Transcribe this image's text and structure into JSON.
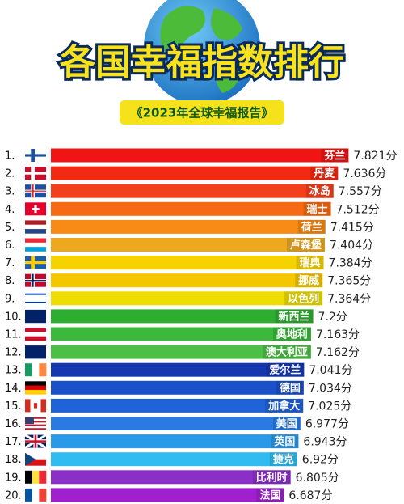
{
  "chart_data": {
    "type": "bar",
    "orientation": "horizontal",
    "title": "各国幸福指数排行",
    "subtitle": "《2023年全球幸福报告》",
    "ranks": [
      "1.",
      "2.",
      "3.",
      "4.",
      "5.",
      "6.",
      "7.",
      "8.",
      "9.",
      "10.",
      "11.",
      "12.",
      "13.",
      "14.",
      "15.",
      "16.",
      "17.",
      "18.",
      "19.",
      "20."
    ],
    "categories": [
      "芬兰",
      "丹麦",
      "冰岛",
      "瑞士",
      "荷兰",
      "卢森堡",
      "瑞典",
      "挪威",
      "以色列",
      "新西兰",
      "奥地利",
      "澳大利亚",
      "爱尔兰",
      "德国",
      "加拿大",
      "美国",
      "英国",
      "捷克",
      "比利时",
      "法国"
    ],
    "values": [
      7.821,
      7.636,
      7.557,
      7.512,
      7.415,
      7.404,
      7.384,
      7.365,
      7.364,
      7.2,
      7.163,
      7.162,
      7.041,
      7.034,
      7.025,
      6.977,
      6.943,
      6.92,
      6.805,
      6.687
    ],
    "value_labels": [
      "7.821分",
      "7.636分",
      "7.557分",
      "7.512分",
      "7.415分",
      "7.404分",
      "7.384分",
      "7.365分",
      "7.364分",
      "7.2分",
      "7.163分",
      "7.162分",
      "7.041分",
      "7.034分",
      "7.025分",
      "6.977分",
      "6.943分",
      "6.92分",
      "6.805分",
      "6.687分"
    ],
    "colors": [
      "#f01414",
      "#f22a14",
      "#f3401c",
      "#f56a12",
      "#f88a16",
      "#eda820",
      "#f5d200",
      "#f3c600",
      "#efdc00",
      "#2eae30",
      "#3cb83c",
      "#4cc046",
      "#1538b0",
      "#1a50c8",
      "#2062d8",
      "#2a7ae2",
      "#2a9ae8",
      "#30bcf0",
      "#8a30c8",
      "#a020d0"
    ],
    "xlim": [
      2.6,
      8.0
    ]
  }
}
